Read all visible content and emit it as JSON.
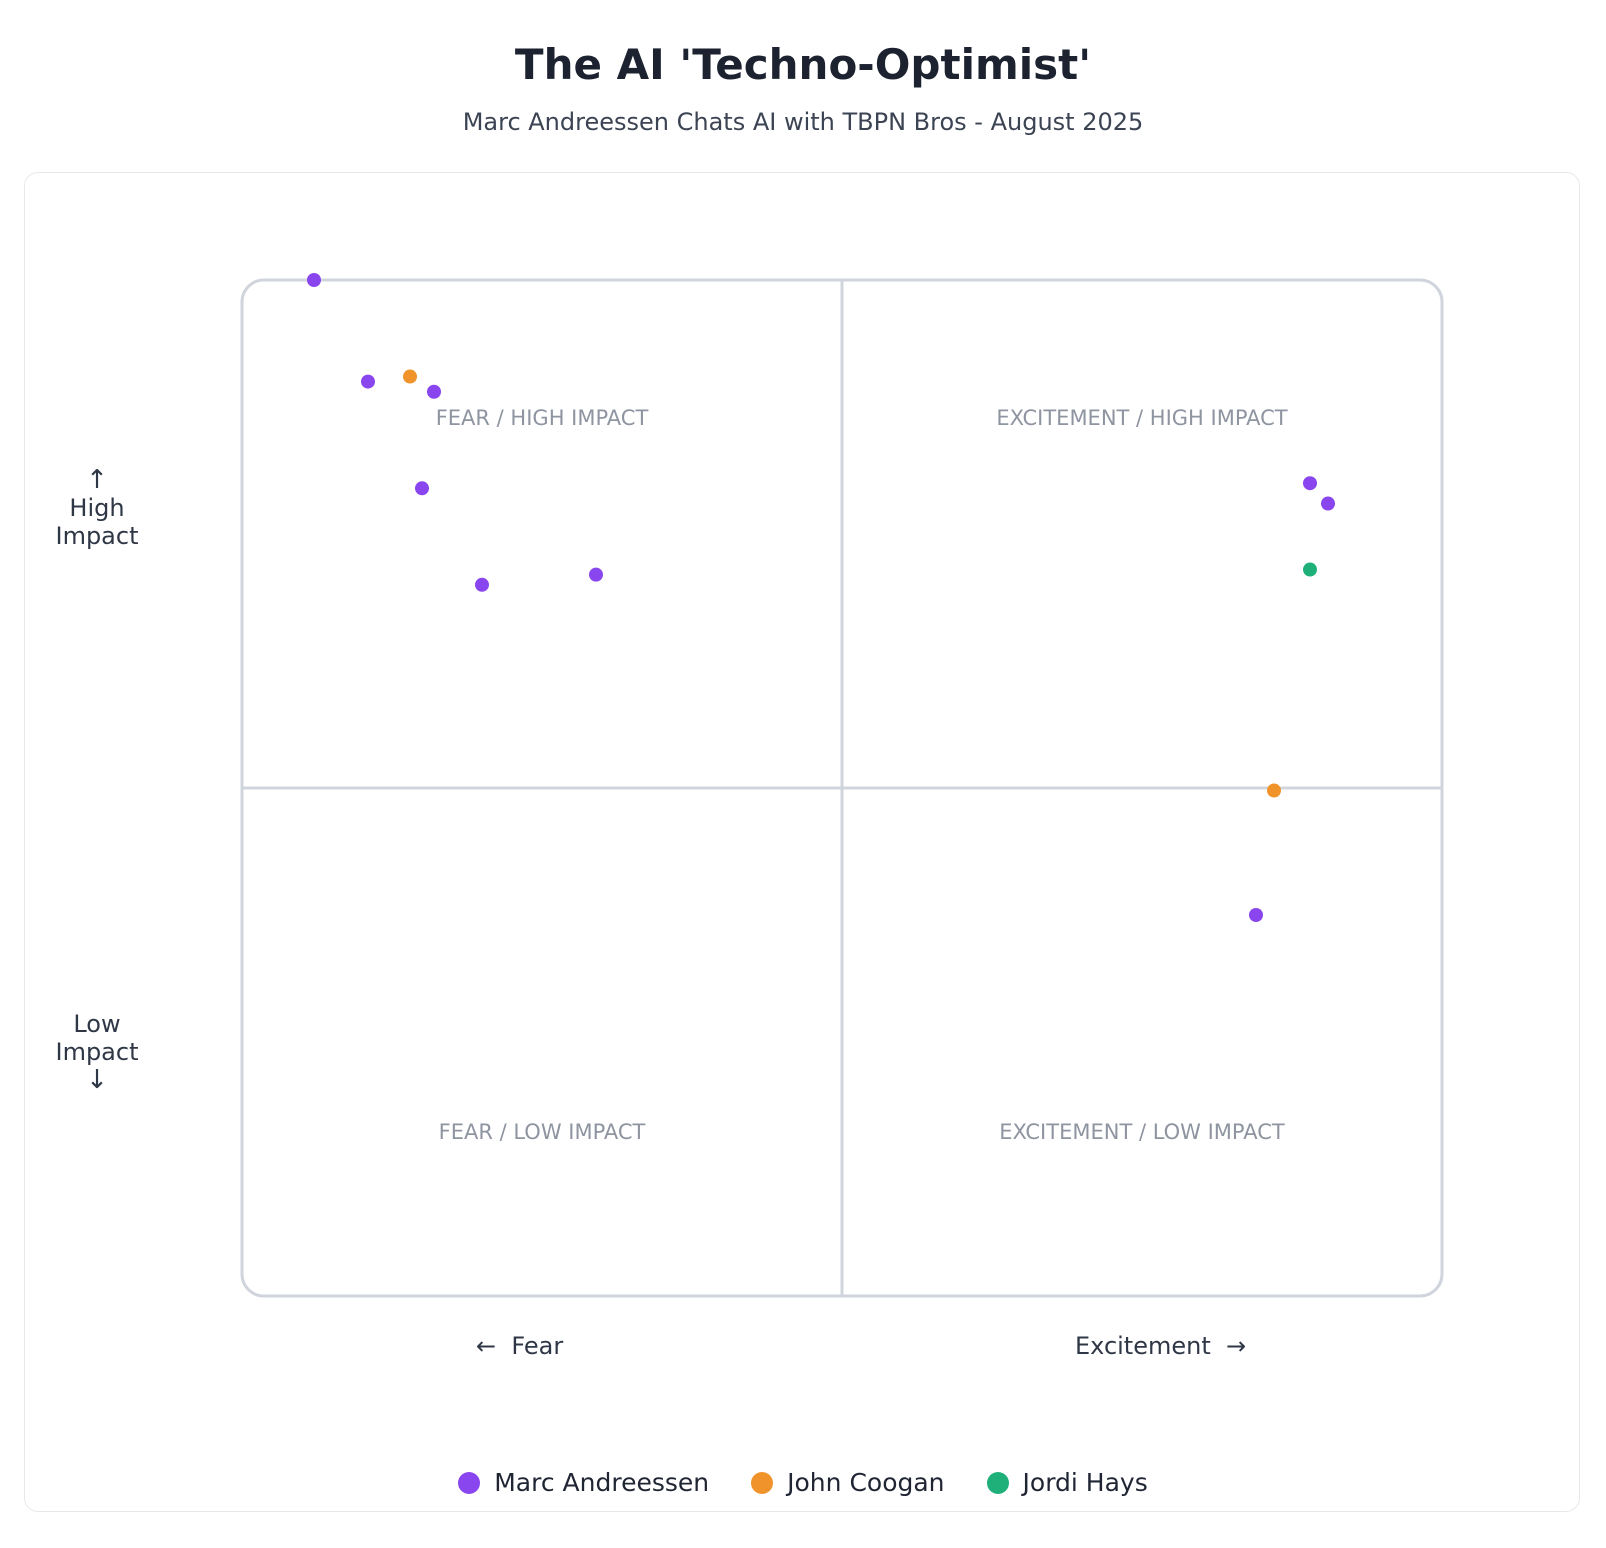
{
  "title": "The AI 'Techno-Optimist'",
  "subtitle": "Marc Andreessen Chats AI with TBPN Bros - August 2025",
  "axes": {
    "y_high": "High\nImpact",
    "y_low": "Low\nImpact",
    "x_left": "Fear",
    "x_right": "Excitement",
    "up_arrow": "↑",
    "down_arrow": "↓",
    "left_arrow": "←",
    "right_arrow": "→"
  },
  "quadrants": {
    "top_left": "FEAR / HIGH IMPACT",
    "top_right": "EXCITEMENT / HIGH IMPACT",
    "bottom_left": "FEAR / LOW IMPACT",
    "bottom_right": "EXCITEMENT / LOW IMPACT"
  },
  "colors": {
    "marc": "#8a46ee",
    "john": "#f0932a",
    "jordi": "#1fb07a",
    "grid": "#d0d4dc",
    "quadrant_label": "#8e94a0"
  },
  "chart_data": {
    "type": "scatter",
    "xlim": [
      -1,
      1
    ],
    "ylim": [
      -1,
      1
    ],
    "grid": false,
    "legend_position": "bottom-center",
    "series": [
      {
        "name": "Marc Andreessen",
        "color": "#8a46ee",
        "points": [
          {
            "x": -0.88,
            "y": 1.0
          },
          {
            "x": -0.79,
            "y": 0.8
          },
          {
            "x": -0.68,
            "y": 0.78
          },
          {
            "x": -0.7,
            "y": 0.59
          },
          {
            "x": -0.6,
            "y": 0.4
          },
          {
            "x": -0.41,
            "y": 0.42
          },
          {
            "x": 0.78,
            "y": 0.6
          },
          {
            "x": 0.81,
            "y": 0.56
          },
          {
            "x": 0.69,
            "y": -0.25
          }
        ]
      },
      {
        "name": "John Coogan",
        "color": "#f0932a",
        "points": [
          {
            "x": -0.72,
            "y": 0.81
          },
          {
            "x": 0.72,
            "y": -0.005
          }
        ]
      },
      {
        "name": "Jordi Hays",
        "color": "#1fb07a",
        "points": [
          {
            "x": 0.78,
            "y": 0.43
          }
        ]
      }
    ]
  }
}
